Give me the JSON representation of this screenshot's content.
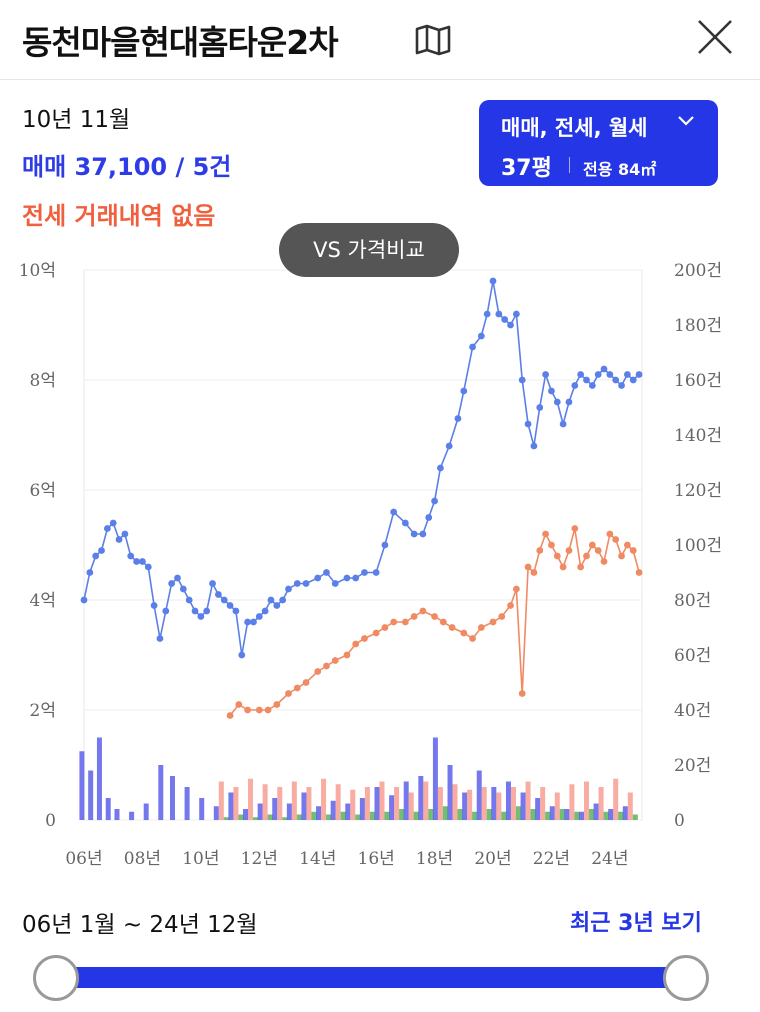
{
  "header": {
    "title": "동천마을현대홈타운2차",
    "map_icon": "map-icon",
    "close_icon": "close-icon"
  },
  "summary": {
    "period": "10년 11월",
    "sale": "매매 37,100 / 5건",
    "rent": "전세 거래내역 없음"
  },
  "filter": {
    "types": "매매, 전세, 월세",
    "size": "37평",
    "area": "전용 84㎡"
  },
  "compare_button": "VS 가격비교",
  "range": {
    "label": "06년 1월 ~ 24년 12월",
    "recent_button": "최근 3년 보기",
    "start_fraction": 0,
    "end_fraction": 1
  },
  "colors": {
    "sale": "#5b7fe8",
    "jeonse": "#f08a63",
    "accent": "#2536e6",
    "sale_bar": "#3b3fe6",
    "jeonse_bar": "#f5897a",
    "monthly_bar": "#4caf50"
  },
  "chart_data": {
    "type": "line",
    "x_ticks": [
      "06년",
      "08년",
      "10년",
      "12년",
      "14년",
      "16년",
      "18년",
      "20년",
      "22년",
      "24년"
    ],
    "x_range": [
      2006.0,
      2025.1
    ],
    "y_left_ticks": [
      "0",
      "2억",
      "4억",
      "6억",
      "8억",
      "10억"
    ],
    "y_left_range": [
      0,
      10
    ],
    "y_right_ticks": [
      "0",
      "20건",
      "40건",
      "60건",
      "80건",
      "100건",
      "120건",
      "140건",
      "160건",
      "180건",
      "200건"
    ],
    "y_right_range": [
      0,
      200
    ],
    "grid": true,
    "series": [
      {
        "x": [
          2006.0,
          2006.2,
          2006.4,
          2006.6,
          2006.8,
          2007.0,
          2007.2,
          2007.4,
          2007.6,
          2007.8,
          2008.0,
          2008.2,
          2008.4,
          2008.6,
          2008.8,
          2009.0,
          2009.2,
          2009.4,
          2009.6,
          2009.8,
          2010.0,
          2010.2,
          2010.4,
          2010.6,
          2010.8,
          2011.0,
          2011.2,
          2011.4,
          2011.6,
          2011.8,
          2012.0,
          2012.2,
          2012.4,
          2012.6,
          2012.8,
          2013.0,
          2013.3,
          2013.6,
          2014.0,
          2014.3,
          2014.6,
          2015.0,
          2015.3,
          2015.6,
          2016.0,
          2016.3,
          2016.6,
          2017.0,
          2017.3,
          2017.6,
          2017.8,
          2018.0,
          2018.2,
          2018.5,
          2018.8,
          2019.0,
          2019.3,
          2019.6,
          2019.8,
          2020.0,
          2020.2,
          2020.4,
          2020.6,
          2020.8,
          2021.0,
          2021.2,
          2021.4,
          2021.6,
          2021.8,
          2022.0,
          2022.2,
          2022.4,
          2022.6,
          2022.8,
          2023.0,
          2023.2,
          2023.4,
          2023.6,
          2023.8,
          2024.0,
          2024.2,
          2024.4,
          2024.6,
          2024.8,
          2025.0
        ],
        "y": [
          4.0,
          4.5,
          4.8,
          4.9,
          5.3,
          5.4,
          5.1,
          5.2,
          4.8,
          4.7,
          4.7,
          4.6,
          3.9,
          3.3,
          3.8,
          4.3,
          4.4,
          4.2,
          4.0,
          3.8,
          3.7,
          3.8,
          4.3,
          4.1,
          4.0,
          3.9,
          3.8,
          3.0,
          3.6,
          3.6,
          3.7,
          3.8,
          4.0,
          3.9,
          4.0,
          4.2,
          4.3,
          4.3,
          4.4,
          4.5,
          4.3,
          4.4,
          4.4,
          4.5,
          4.5,
          5.0,
          5.6,
          5.4,
          5.2,
          5.2,
          5.5,
          5.8,
          6.4,
          6.8,
          7.3,
          7.8,
          8.6,
          8.8,
          9.2,
          9.8,
          9.2,
          9.1,
          9.0,
          9.2,
          8.0,
          7.2,
          6.8,
          7.5,
          8.1,
          7.8,
          7.6,
          7.2,
          7.6,
          7.9,
          8.1,
          8.0,
          7.9,
          8.1,
          8.2,
          8.1,
          8.0,
          7.9,
          8.1,
          8.0,
          8.1
        ],
        "axis": "left"
      },
      {
        "x": [
          2011.0,
          2011.3,
          2011.6,
          2012.0,
          2012.3,
          2012.6,
          2013.0,
          2013.3,
          2013.6,
          2014.0,
          2014.3,
          2014.6,
          2015.0,
          2015.3,
          2015.6,
          2016.0,
          2016.3,
          2016.6,
          2017.0,
          2017.3,
          2017.6,
          2018.0,
          2018.3,
          2018.6,
          2019.0,
          2019.3,
          2019.6,
          2020.0,
          2020.3,
          2020.6,
          2020.8,
          2021.0,
          2021.2,
          2021.4,
          2021.6,
          2021.8,
          2022.0,
          2022.2,
          2022.4,
          2022.6,
          2022.8,
          2023.0,
          2023.2,
          2023.4,
          2023.6,
          2023.8,
          2024.0,
          2024.2,
          2024.4,
          2024.6,
          2024.8,
          2025.0
        ],
        "y": [
          1.9,
          2.1,
          2.0,
          2.0,
          2.0,
          2.1,
          2.3,
          2.4,
          2.5,
          2.7,
          2.8,
          2.9,
          3.0,
          3.2,
          3.3,
          3.4,
          3.5,
          3.6,
          3.6,
          3.7,
          3.8,
          3.7,
          3.6,
          3.5,
          3.4,
          3.3,
          3.5,
          3.6,
          3.7,
          3.9,
          4.2,
          2.3,
          4.6,
          4.5,
          4.9,
          5.2,
          5.0,
          4.8,
          4.6,
          4.9,
          5.3,
          4.6,
          4.8,
          5.0,
          4.9,
          4.7,
          5.2,
          5.1,
          4.8,
          5.0,
          4.9,
          4.5
        ],
        "axis": "left"
      }
    ],
    "volume_bars": {
      "x": [
        2006.1,
        2006.4,
        2006.7,
        2007.0,
        2007.3,
        2007.8,
        2008.3,
        2008.8,
        2009.2,
        2009.7,
        2010.2,
        2010.7,
        2011.2,
        2011.7,
        2012.2,
        2012.7,
        2013.2,
        2013.7,
        2014.2,
        2014.7,
        2015.2,
        2015.7,
        2016.2,
        2016.7,
        2017.2,
        2017.7,
        2018.2,
        2018.7,
        2019.2,
        2019.7,
        2020.2,
        2020.7,
        2021.2,
        2021.7,
        2022.2,
        2022.7,
        2023.2,
        2023.7,
        2024.2,
        2024.7
      ],
      "sale": [
        25,
        18,
        30,
        8,
        4,
        3,
        6,
        20,
        16,
        12,
        8,
        5,
        10,
        4,
        6,
        8,
        6,
        10,
        5,
        7,
        6,
        8,
        12,
        9,
        14,
        16,
        30,
        20,
        10,
        18,
        12,
        14,
        10,
        8,
        5,
        4,
        3,
        6,
        4,
        5
      ],
      "jeonse": [
        0,
        0,
        0,
        0,
        0,
        0,
        0,
        0,
        0,
        0,
        0,
        14,
        12,
        15,
        13,
        12,
        14,
        12,
        15,
        13,
        11,
        12,
        14,
        12,
        10,
        14,
        12,
        13,
        11,
        12,
        10,
        12,
        14,
        12,
        10,
        13,
        14,
        12,
        15,
        10
      ],
      "monthly": [
        0,
        0,
        0,
        0,
        0,
        0,
        0,
        0,
        0,
        0,
        0,
        1,
        2,
        1,
        2,
        1,
        2,
        3,
        2,
        3,
        2,
        3,
        3,
        4,
        3,
        4,
        5,
        4,
        3,
        4,
        3,
        5,
        4,
        3,
        4,
        3,
        4,
        3,
        3,
        2
      ],
      "axis": "right"
    }
  }
}
